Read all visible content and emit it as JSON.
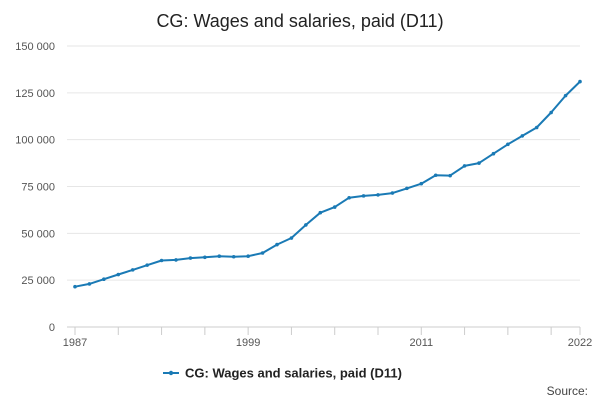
{
  "chart_data": {
    "type": "line",
    "title": "CG: Wages and salaries, paid (D11)",
    "xlabel": "",
    "ylabel": "",
    "xlim": [
      1987,
      2022
    ],
    "ylim": [
      0,
      150000
    ],
    "x_ticks": [
      1987,
      1999,
      2011,
      2022
    ],
    "y_ticks": [
      {
        "value": 0,
        "label": "0"
      },
      {
        "value": 25000,
        "label": "25 000"
      },
      {
        "value": 50000,
        "label": "50 000"
      },
      {
        "value": 75000,
        "label": "75 000"
      },
      {
        "value": 100000,
        "label": "100 000"
      },
      {
        "value": 125000,
        "label": "125 000"
      },
      {
        "value": 150000,
        "label": "150 000"
      }
    ],
    "grid": true,
    "legend_position": "bottom",
    "series": [
      {
        "name": "CG: Wages and salaries, paid (D11)",
        "color": "#1a7ab5",
        "x": [
          1987,
          1988,
          1989,
          1990,
          1991,
          1992,
          1993,
          1994,
          1995,
          1996,
          1997,
          1998,
          1999,
          2000,
          2001,
          2002,
          2003,
          2004,
          2005,
          2006,
          2007,
          2008,
          2009,
          2010,
          2011,
          2012,
          2013,
          2014,
          2015,
          2016,
          2017,
          2018,
          2019,
          2020,
          2021,
          2022
        ],
        "values": [
          21500,
          23000,
          25500,
          28000,
          30500,
          33000,
          35500,
          35800,
          36800,
          37200,
          37800,
          37500,
          37800,
          39500,
          44000,
          47500,
          54500,
          61000,
          64000,
          69000,
          70000,
          70500,
          71500,
          74000,
          76500,
          81000,
          80800,
          86000,
          87500,
          92500,
          97500,
          102000,
          106500,
          114500,
          123500,
          131000
        ]
      }
    ]
  },
  "source_label": "Source:"
}
